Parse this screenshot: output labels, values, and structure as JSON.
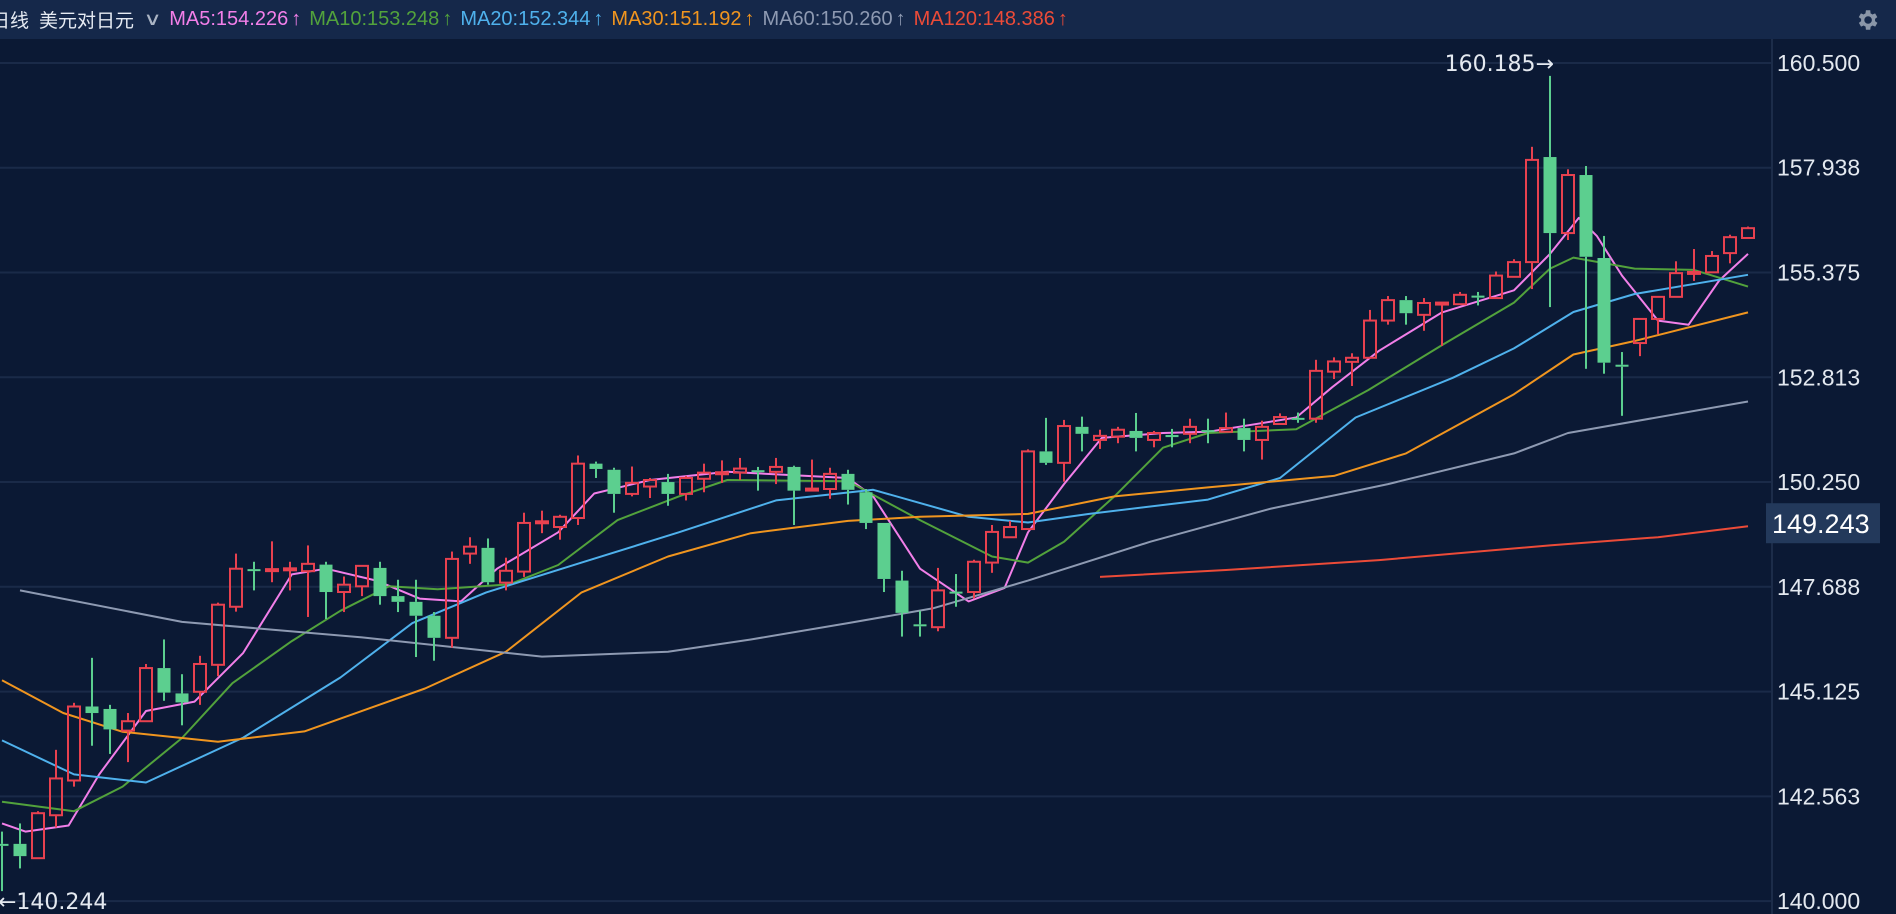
{
  "header": {
    "period": "日线",
    "symbol": "美元对日元",
    "dropdown_icon": "chevron-down-icon",
    "settings_icon": "gear-icon",
    "ma_labels": [
      {
        "text": "MA5:154.226",
        "arrow": "↑",
        "color": "#f27fe9"
      },
      {
        "text": "MA10:153.248",
        "arrow": "↑",
        "color": "#52a23c"
      },
      {
        "text": "MA20:152.344",
        "arrow": "↑",
        "color": "#4fb1ec"
      },
      {
        "text": "MA30:151.192",
        "arrow": "↑",
        "color": "#f0951f"
      },
      {
        "text": "MA60:150.260",
        "arrow": "↑",
        "color": "#8e9ab2"
      },
      {
        "text": "MA120:148.386",
        "arrow": "↑",
        "color": "#ec4b38"
      }
    ]
  },
  "chart_data": {
    "type": "candlestick",
    "ylim": [
      140.0,
      160.5
    ],
    "yticks": [
      "160.500",
      "157.938",
      "155.375",
      "152.813",
      "150.250",
      "147.688",
      "145.125",
      "142.563",
      "140.000"
    ],
    "grid": true,
    "current_tag": "149.243",
    "max_label": "160.185→",
    "min_label": "←140.244",
    "colors": {
      "up": "#e8414f",
      "down": "#5ccf8f",
      "background": "#0b1934",
      "grid": "#1a2a48"
    },
    "candle_fields": [
      "open",
      "high",
      "low",
      "close"
    ],
    "candles": [
      [
        141.4,
        141.7,
        140.244,
        141.38
      ],
      [
        141.4,
        141.9,
        140.8,
        141.1
      ],
      [
        141.05,
        142.2,
        141.05,
        142.15
      ],
      [
        142.1,
        143.7,
        141.8,
        143.0
      ],
      [
        142.95,
        144.85,
        142.8,
        144.76
      ],
      [
        144.76,
        145.95,
        143.8,
        144.6
      ],
      [
        144.7,
        144.8,
        143.6,
        144.2
      ],
      [
        144.17,
        144.6,
        143.4,
        144.4
      ],
      [
        144.4,
        145.8,
        144.4,
        145.7
      ],
      [
        145.7,
        146.4,
        144.9,
        145.1
      ],
      [
        145.08,
        145.55,
        144.3,
        144.86
      ],
      [
        145.12,
        146.0,
        144.8,
        145.8
      ],
      [
        145.78,
        147.3,
        145.5,
        147.25
      ],
      [
        147.2,
        148.5,
        147.08,
        148.13
      ],
      [
        148.12,
        148.3,
        147.6,
        148.08
      ],
      [
        148.08,
        148.8,
        147.8,
        148.12
      ],
      [
        148.1,
        148.3,
        147.6,
        148.14
      ],
      [
        148.07,
        148.7,
        146.95,
        148.25
      ],
      [
        148.23,
        148.3,
        146.9,
        147.56
      ],
      [
        147.56,
        147.94,
        147.07,
        147.74
      ],
      [
        147.7,
        148.2,
        147.46,
        148.2
      ],
      [
        148.15,
        148.3,
        147.25,
        147.46
      ],
      [
        147.46,
        147.86,
        147.07,
        147.32
      ],
      [
        147.32,
        147.86,
        145.97,
        146.98
      ],
      [
        146.98,
        147.07,
        145.88,
        146.44
      ],
      [
        146.44,
        148.55,
        146.2,
        148.37
      ],
      [
        148.5,
        148.9,
        148.25,
        148.67
      ],
      [
        148.64,
        148.87,
        147.74,
        147.8
      ],
      [
        147.79,
        148.4,
        147.6,
        148.08
      ],
      [
        148.06,
        149.5,
        147.93,
        149.25
      ],
      [
        149.25,
        149.55,
        149.0,
        149.29
      ],
      [
        149.15,
        149.45,
        148.84,
        149.4
      ],
      [
        149.37,
        150.9,
        149.2,
        150.7
      ],
      [
        150.7,
        150.75,
        150.35,
        150.57
      ],
      [
        150.55,
        150.6,
        149.5,
        149.96
      ],
      [
        149.96,
        150.63,
        149.9,
        150.23
      ],
      [
        150.14,
        150.35,
        149.86,
        150.3
      ],
      [
        150.25,
        150.45,
        149.67,
        149.96
      ],
      [
        149.96,
        150.4,
        149.8,
        150.35
      ],
      [
        150.33,
        150.7,
        150.0,
        150.48
      ],
      [
        150.47,
        150.78,
        150.23,
        150.49
      ],
      [
        150.48,
        150.84,
        150.3,
        150.58
      ],
      [
        150.54,
        150.62,
        150.04,
        150.52
      ],
      [
        150.5,
        150.84,
        150.2,
        150.62
      ],
      [
        150.62,
        150.65,
        149.2,
        150.04
      ],
      [
        150.07,
        150.8,
        150.07,
        150.09
      ],
      [
        150.08,
        150.6,
        149.84,
        150.45
      ],
      [
        150.45,
        150.55,
        149.7,
        150.06
      ],
      [
        150.0,
        150.08,
        149.1,
        149.25
      ],
      [
        149.25,
        149.25,
        147.56,
        147.88
      ],
      [
        147.84,
        148.08,
        146.47,
        147.05
      ],
      [
        146.77,
        147.1,
        146.47,
        146.75
      ],
      [
        146.7,
        148.15,
        146.6,
        147.6
      ],
      [
        147.57,
        148.0,
        147.2,
        147.55
      ],
      [
        147.56,
        148.35,
        147.4,
        148.3
      ],
      [
        148.28,
        149.2,
        148.03,
        149.03
      ],
      [
        148.9,
        149.3,
        148.9,
        149.15
      ],
      [
        149.1,
        151.05,
        149.1,
        151.0
      ],
      [
        151.0,
        151.82,
        150.67,
        150.72
      ],
      [
        150.72,
        151.77,
        150.26,
        151.62
      ],
      [
        151.6,
        151.85,
        151.0,
        151.43
      ],
      [
        151.28,
        151.53,
        151.06,
        151.38
      ],
      [
        151.36,
        151.6,
        151.2,
        151.53
      ],
      [
        151.5,
        151.94,
        151.0,
        151.33
      ],
      [
        151.28,
        151.5,
        151.1,
        151.45
      ],
      [
        151.4,
        151.55,
        151.1,
        151.35
      ],
      [
        151.43,
        151.8,
        151.2,
        151.6
      ],
      [
        151.52,
        151.8,
        151.2,
        151.48
      ],
      [
        151.48,
        151.95,
        151.48,
        151.57
      ],
      [
        151.57,
        151.8,
        151.0,
        151.28
      ],
      [
        151.28,
        151.75,
        150.8,
        151.6
      ],
      [
        151.67,
        151.93,
        151.67,
        151.84
      ],
      [
        151.82,
        151.95,
        151.7,
        151.78
      ],
      [
        151.8,
        153.24,
        151.7,
        152.97
      ],
      [
        152.95,
        153.3,
        152.77,
        153.2
      ],
      [
        153.19,
        153.4,
        152.6,
        153.29
      ],
      [
        153.29,
        154.46,
        153.29,
        154.2
      ],
      [
        154.2,
        154.8,
        154.1,
        154.7
      ],
      [
        154.7,
        154.8,
        154.1,
        154.38
      ],
      [
        154.34,
        154.75,
        153.95,
        154.63
      ],
      [
        154.62,
        154.65,
        153.58,
        154.64
      ],
      [
        154.6,
        154.9,
        154.6,
        154.83
      ],
      [
        154.81,
        154.9,
        154.57,
        154.79
      ],
      [
        154.75,
        155.4,
        154.75,
        155.3
      ],
      [
        155.27,
        155.7,
        155.27,
        155.63
      ],
      [
        155.63,
        158.45,
        154.97,
        158.13
      ],
      [
        158.2,
        160.185,
        154.53,
        156.34
      ],
      [
        156.34,
        157.9,
        156.17,
        157.76
      ],
      [
        157.76,
        157.98,
        153.02,
        155.76
      ],
      [
        155.73,
        156.27,
        152.9,
        153.17
      ],
      [
        153.12,
        153.43,
        151.87,
        153.08
      ],
      [
        153.65,
        154.24,
        153.33,
        154.24
      ],
      [
        154.24,
        154.78,
        153.87,
        154.78
      ],
      [
        154.78,
        155.65,
        154.78,
        155.36
      ],
      [
        155.37,
        155.95,
        155.17,
        155.39
      ],
      [
        155.38,
        155.9,
        155.38,
        155.78
      ],
      [
        155.85,
        156.3,
        155.6,
        156.24
      ],
      [
        156.22,
        156.5,
        156.22,
        156.46
      ]
    ],
    "ma_point_fields": [
      "candle_index",
      "value"
    ],
    "moving_averages": [
      {
        "name": "MA5",
        "color": "#f27fe9",
        "points": [
          [
            0,
            141.9
          ],
          [
            1.3,
            141.7
          ],
          [
            3.7,
            141.85
          ],
          [
            5.4,
            143.1
          ],
          [
            8,
            144.65
          ],
          [
            10.7,
            144.88
          ],
          [
            13.4,
            146.07
          ],
          [
            16.1,
            147.99
          ],
          [
            18,
            148.13
          ],
          [
            20.8,
            147.84
          ],
          [
            23.2,
            147.4
          ],
          [
            25.5,
            147.33
          ],
          [
            27.5,
            148.13
          ],
          [
            30.9,
            149.02
          ],
          [
            32.9,
            149.97
          ],
          [
            36,
            150.3
          ],
          [
            40.3,
            150.5
          ],
          [
            47,
            150.35
          ],
          [
            48.4,
            149.9
          ],
          [
            51,
            148.13
          ],
          [
            53.7,
            147.33
          ],
          [
            55.7,
            147.66
          ],
          [
            57,
            149.02
          ],
          [
            59,
            150.2
          ],
          [
            61.1,
            151.33
          ],
          [
            64.5,
            151.45
          ],
          [
            67,
            151.48
          ],
          [
            71.9,
            151.83
          ],
          [
            73.9,
            152.57
          ],
          [
            76.5,
            153.46
          ],
          [
            80,
            154.4
          ],
          [
            84,
            154.94
          ],
          [
            86,
            155.83
          ],
          [
            87.6,
            156.71
          ],
          [
            88.6,
            156.27
          ],
          [
            90,
            155.3
          ],
          [
            92,
            154.2
          ],
          [
            93.7,
            154.1
          ],
          [
            95.4,
            155.18
          ],
          [
            97,
            155.83
          ]
        ]
      },
      {
        "name": "MA10",
        "color": "#52a23c",
        "points": [
          [
            0,
            142.43
          ],
          [
            4,
            142.2
          ],
          [
            6.7,
            142.8
          ],
          [
            10,
            143.99
          ],
          [
            12.8,
            145.33
          ],
          [
            16.1,
            146.36
          ],
          [
            18.8,
            147.1
          ],
          [
            21.5,
            147.7
          ],
          [
            24.2,
            147.63
          ],
          [
            28.2,
            147.75
          ],
          [
            30.9,
            148.22
          ],
          [
            34.2,
            149.32
          ],
          [
            37.6,
            149.9
          ],
          [
            40.3,
            150.3
          ],
          [
            47,
            150.27
          ],
          [
            51,
            149.32
          ],
          [
            55,
            148.43
          ],
          [
            57,
            148.28
          ],
          [
            59,
            148.79
          ],
          [
            61.8,
            149.9
          ],
          [
            64.5,
            151.09
          ],
          [
            67,
            151.45
          ],
          [
            71.9,
            151.54
          ],
          [
            75.9,
            152.5
          ],
          [
            80,
            153.6
          ],
          [
            84,
            154.64
          ],
          [
            86,
            155.47
          ],
          [
            87.3,
            155.74
          ],
          [
            90.7,
            155.47
          ],
          [
            94,
            155.44
          ],
          [
            97,
            155.03
          ]
        ]
      },
      {
        "name": "MA20",
        "color": "#4fb1ec",
        "points": [
          [
            0,
            143.93
          ],
          [
            4,
            143.1
          ],
          [
            8,
            142.9
          ],
          [
            13.4,
            144.0
          ],
          [
            18.8,
            145.47
          ],
          [
            22.8,
            146.8
          ],
          [
            26.9,
            147.55
          ],
          [
            32.2,
            148.28
          ],
          [
            37.6,
            149.02
          ],
          [
            43,
            149.8
          ],
          [
            48.4,
            150.06
          ],
          [
            53.7,
            149.4
          ],
          [
            57,
            149.26
          ],
          [
            60.4,
            149.47
          ],
          [
            67,
            149.82
          ],
          [
            71,
            150.35
          ],
          [
            75.2,
            151.83
          ],
          [
            80.6,
            152.8
          ],
          [
            84,
            153.52
          ],
          [
            87.3,
            154.41
          ],
          [
            90.7,
            154.85
          ],
          [
            97,
            155.32
          ]
        ]
      },
      {
        "name": "MA30",
        "color": "#f0951f",
        "points": [
          [
            0,
            145.4
          ],
          [
            3.4,
            144.6
          ],
          [
            6.7,
            144.14
          ],
          [
            12,
            143.9
          ],
          [
            16.8,
            144.15
          ],
          [
            23.5,
            145.2
          ],
          [
            28,
            146.1
          ],
          [
            32.2,
            147.55
          ],
          [
            37,
            148.43
          ],
          [
            41.6,
            149.0
          ],
          [
            47,
            149.3
          ],
          [
            51,
            149.4
          ],
          [
            57,
            149.47
          ],
          [
            61.8,
            149.9
          ],
          [
            67,
            150.12
          ],
          [
            74,
            150.4
          ],
          [
            78,
            150.95
          ],
          [
            84,
            152.4
          ],
          [
            87.3,
            153.37
          ],
          [
            90.7,
            153.7
          ],
          [
            97,
            154.4
          ]
        ]
      },
      {
        "name": "MA60",
        "color": "#8e9ab2",
        "points": [
          [
            1,
            147.6
          ],
          [
            10,
            146.83
          ],
          [
            20,
            146.45
          ],
          [
            30,
            145.98
          ],
          [
            37,
            146.1
          ],
          [
            41.6,
            146.4
          ],
          [
            47,
            146.8
          ],
          [
            51.7,
            147.16
          ],
          [
            57,
            147.84
          ],
          [
            63.8,
            148.79
          ],
          [
            70.5,
            149.6
          ],
          [
            77,
            150.2
          ],
          [
            84,
            150.95
          ],
          [
            87,
            151.45
          ],
          [
            97,
            152.22
          ]
        ]
      },
      {
        "name": "MA120",
        "color": "#ec4b38",
        "points": [
          [
            61,
            147.93
          ],
          [
            68,
            148.1
          ],
          [
            76.5,
            148.34
          ],
          [
            86,
            148.7
          ],
          [
            92,
            148.9
          ],
          [
            97,
            149.17
          ]
        ]
      }
    ]
  }
}
